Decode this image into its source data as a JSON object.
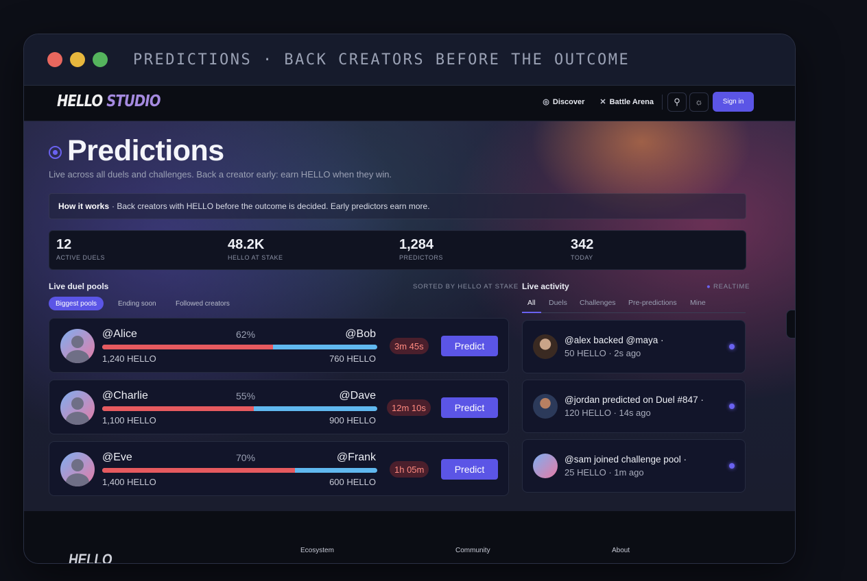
{
  "window": {
    "title": "PREDICTIONS · BACK CREATORS BEFORE THE OUTCOME"
  },
  "nav": {
    "logo_a": "HELLO",
    "logo_b": "STUDIO",
    "discover": "Discover",
    "battle_arena": "Battle Arena",
    "sign_in": "Sign in"
  },
  "hero": {
    "title": "Predictions",
    "subtitle": "Live across all duels and challenges. Back a creator early: earn HELLO when they win.",
    "how_label": "How it works",
    "how_text": "· Back creators with HELLO before the outcome is decided. Early predictors earn more."
  },
  "stats": [
    {
      "value": "12",
      "label": "ACTIVE DUELS"
    },
    {
      "value": "48.2K",
      "label": "HELLO AT STAKE"
    },
    {
      "value": "1,284",
      "label": "PREDICTORS"
    },
    {
      "value": "342",
      "label": "TODAY"
    }
  ],
  "pools_section": {
    "title": "Live duel pools",
    "sort_label": "SORTED BY HELLO AT STAKE",
    "filters": [
      "Biggest pools",
      "Ending soon",
      "Followed creators"
    ],
    "predict_label": "Predict",
    "pools": [
      {
        "left": "@Alice",
        "right": "@Bob",
        "pct": "62%",
        "pct_value": 62,
        "left_amt": "1,240 HELLO",
        "right_amt": "760 HELLO",
        "time": "3m 45s"
      },
      {
        "left": "@Charlie",
        "right": "@Dave",
        "pct": "55%",
        "pct_value": 55,
        "left_amt": "1,100 HELLO",
        "right_amt": "900 HELLO",
        "time": "12m 10s"
      },
      {
        "left": "@Eve",
        "right": "@Frank",
        "pct": "70%",
        "pct_value": 70,
        "left_amt": "1,400 HELLO",
        "right_amt": "600 HELLO",
        "time": "1h 05m"
      }
    ]
  },
  "activity_section": {
    "title": "Live activity",
    "realtime": "REALTIME",
    "tabs": [
      "All",
      "Duels",
      "Challenges",
      "Pre-predictions",
      "Mine"
    ],
    "items": [
      {
        "line1": "@alex backed @maya ·",
        "line2": "50 HELLO · 2s ago"
      },
      {
        "line1": "@jordan predicted on Duel #847 ·",
        "line2": "120 HELLO · 14s ago"
      },
      {
        "line1": "@sam joined challenge pool ·",
        "line2": "25 HELLO · 1m ago"
      }
    ]
  },
  "footer": {
    "logo": "HELLO",
    "cols": [
      "Ecosystem",
      "Community",
      "About"
    ]
  },
  "colors": {
    "accent": "#5b55e6",
    "bar_left": "#e65a5f",
    "bar_right": "#60b8ef",
    "timer_text": "#ff8a80"
  }
}
